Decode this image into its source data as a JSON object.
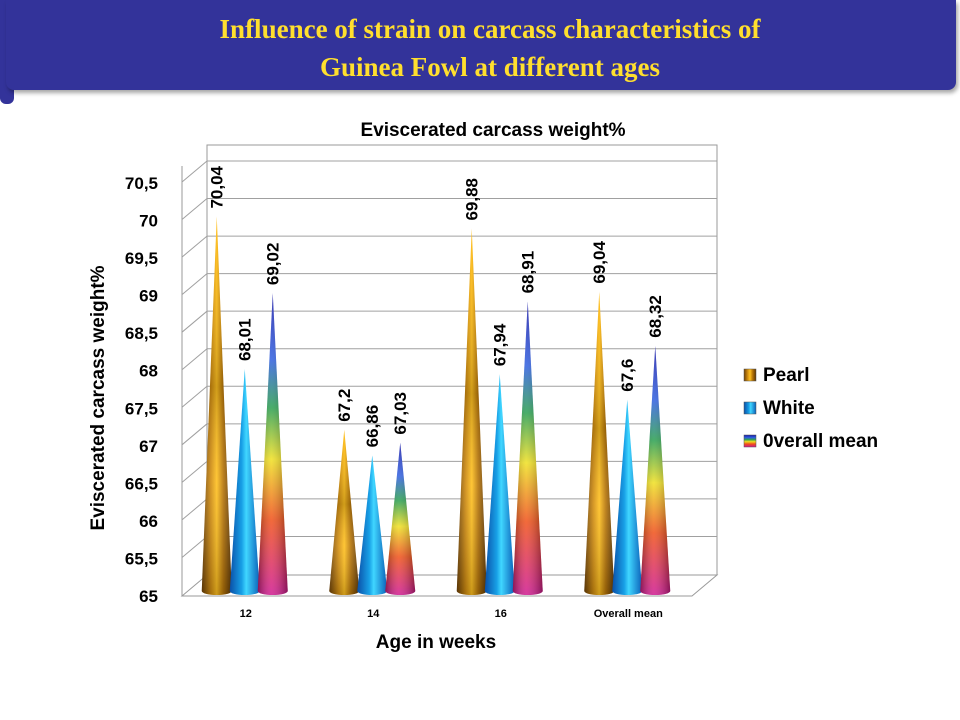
{
  "header": {
    "line1": "Influence of strain on carcass characteristics of",
    "line2": "Guinea Fowl at different ages",
    "background": "#33339a",
    "text_color": "#ffdf2e"
  },
  "chart_data": {
    "type": "bar",
    "style": "3D cones",
    "title": "Eviscerated carcass weight%",
    "xlabel": "Age in weeks",
    "ylabel": "Eviscerated carcass weight%",
    "categories": [
      "12",
      "14",
      "16",
      "Overall mean"
    ],
    "ylim": [
      65,
      70.5
    ],
    "yticks": [
      "65",
      "65,5",
      "66",
      "66,5",
      "67",
      "67,5",
      "68",
      "68,5",
      "69",
      "69,5",
      "70",
      "70,5"
    ],
    "grid": true,
    "legend_position": "right",
    "series": [
      {
        "name": "Pearl",
        "values": [
          70.04,
          67.2,
          69.88,
          69.04
        ],
        "labels": [
          "70,04",
          "67,2",
          "69,88",
          "69,04"
        ],
        "color": "#c88a10"
      },
      {
        "name": "White",
        "values": [
          68.01,
          66.86,
          67.94,
          67.6
        ],
        "labels": [
          "68,01",
          "66,86",
          "67,94",
          "67,6"
        ],
        "color": "#1aa8e0"
      },
      {
        "name": "0verall mean",
        "values": [
          69.02,
          67.03,
          68.91,
          68.32
        ],
        "labels": [
          "69,02",
          "67,03",
          "68,91",
          "68,32"
        ],
        "color": "#7a3cc8"
      }
    ]
  }
}
